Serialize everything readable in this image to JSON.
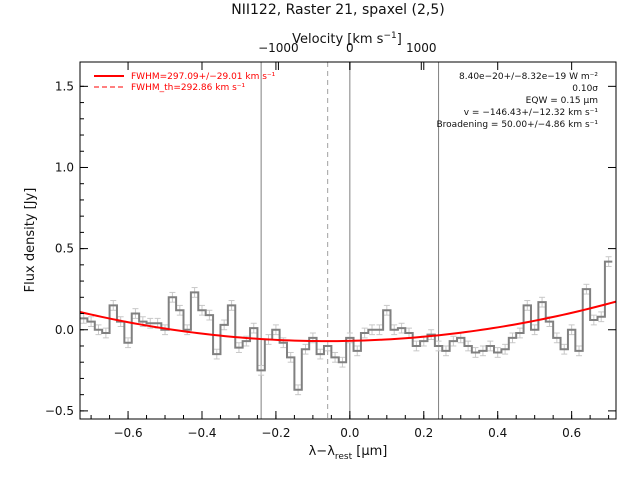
{
  "chart_data": {
    "type": "line",
    "title": "NII122, Raster 21, spaxel (2,5)",
    "xlabel_main": "λ−λ",
    "xlabel_sub": "rest",
    "xlabel_unit": " [μm]",
    "ylabel": "Flux density [Jy]",
    "top_axis_label": "Velocity [km s",
    "top_axis_label_sup": "−1",
    "top_axis_label_end": "]",
    "xlim": [
      -0.73,
      0.72
    ],
    "ylim": [
      -0.55,
      1.65
    ],
    "x_ticks": [
      -0.6,
      -0.4,
      -0.2,
      0.0,
      0.2,
      0.4,
      0.6
    ],
    "x_tick_labels": [
      "−0.6",
      "−0.4",
      "−0.2",
      "0.0",
      "0.2",
      "0.4",
      "0.6"
    ],
    "y_ticks": [
      -0.5,
      0.0,
      0.5,
      1.0,
      1.5
    ],
    "y_tick_labels": [
      "−0.5",
      "0.0",
      "0.5",
      "1.0",
      "1.5"
    ],
    "top_ticks_kms": [
      -1000,
      0,
      1000
    ],
    "top_tick_labels": [
      "−1000",
      "0",
      "1000"
    ],
    "top_axis_km_per_um": 5174,
    "vertical_lines": {
      "solid": [
        -0.24,
        0.0,
        0.24
      ],
      "dashed": [
        -0.06
      ]
    },
    "series": [
      {
        "name": "data",
        "color": "#808080",
        "x": [
          -0.72,
          -0.7,
          -0.68,
          -0.66,
          -0.64,
          -0.62,
          -0.6,
          -0.58,
          -0.56,
          -0.54,
          -0.52,
          -0.5,
          -0.48,
          -0.46,
          -0.44,
          -0.42,
          -0.4,
          -0.38,
          -0.36,
          -0.34,
          -0.32,
          -0.3,
          -0.28,
          -0.26,
          -0.24,
          -0.22,
          -0.2,
          -0.18,
          -0.16,
          -0.14,
          -0.12,
          -0.1,
          -0.08,
          -0.06,
          -0.04,
          -0.02,
          0.0,
          0.02,
          0.04,
          0.06,
          0.08,
          0.1,
          0.12,
          0.14,
          0.16,
          0.18,
          0.2,
          0.22,
          0.24,
          0.26,
          0.28,
          0.3,
          0.32,
          0.34,
          0.36,
          0.38,
          0.4,
          0.42,
          0.44,
          0.46,
          0.48,
          0.5,
          0.52,
          0.54,
          0.56,
          0.58,
          0.6,
          0.62,
          0.64,
          0.66,
          0.68,
          0.7
        ],
        "y": [
          0.07,
          0.05,
          0.0,
          -0.02,
          0.15,
          0.05,
          -0.08,
          0.1,
          0.05,
          0.04,
          0.04,
          0.0,
          0.2,
          0.12,
          0.0,
          0.23,
          0.12,
          0.09,
          -0.15,
          0.03,
          0.15,
          -0.11,
          -0.07,
          0.01,
          -0.25,
          -0.06,
          0.0,
          -0.08,
          -0.17,
          -0.37,
          -0.12,
          -0.05,
          -0.15,
          -0.1,
          -0.17,
          -0.2,
          -0.05,
          -0.13,
          -0.02,
          0.0,
          0.0,
          0.12,
          0.0,
          0.01,
          -0.02,
          -0.1,
          -0.07,
          -0.03,
          -0.1,
          -0.13,
          -0.07,
          -0.05,
          -0.1,
          -0.14,
          -0.13,
          -0.1,
          -0.14,
          -0.12,
          -0.05,
          -0.02,
          0.15,
          0.0,
          0.17,
          0.05,
          -0.05,
          -0.12,
          0.0,
          -0.13,
          0.25,
          0.06,
          0.08,
          0.42
        ],
        "error": 0.03
      },
      {
        "name": "FWHM=297.09+/−29.01 km s⁻¹",
        "color": "#ff0000",
        "fit": {
          "center": -0.06,
          "baseline": -0.07,
          "curvature": 0.4
        }
      },
      {
        "name": "FWHM_th=292.86 km s⁻¹",
        "color": "#ff0000",
        "style": "dashed"
      }
    ],
    "legend_position": "top-left",
    "annotations": [
      "8.40e−20+/−8.32e−19 W m⁻²",
      "0.10σ",
      "EQW = 0.15 μm",
      "v = −146.43+/−12.32 km s⁻¹",
      "Broadening = 50.00+/−4.86 km s⁻¹"
    ]
  }
}
